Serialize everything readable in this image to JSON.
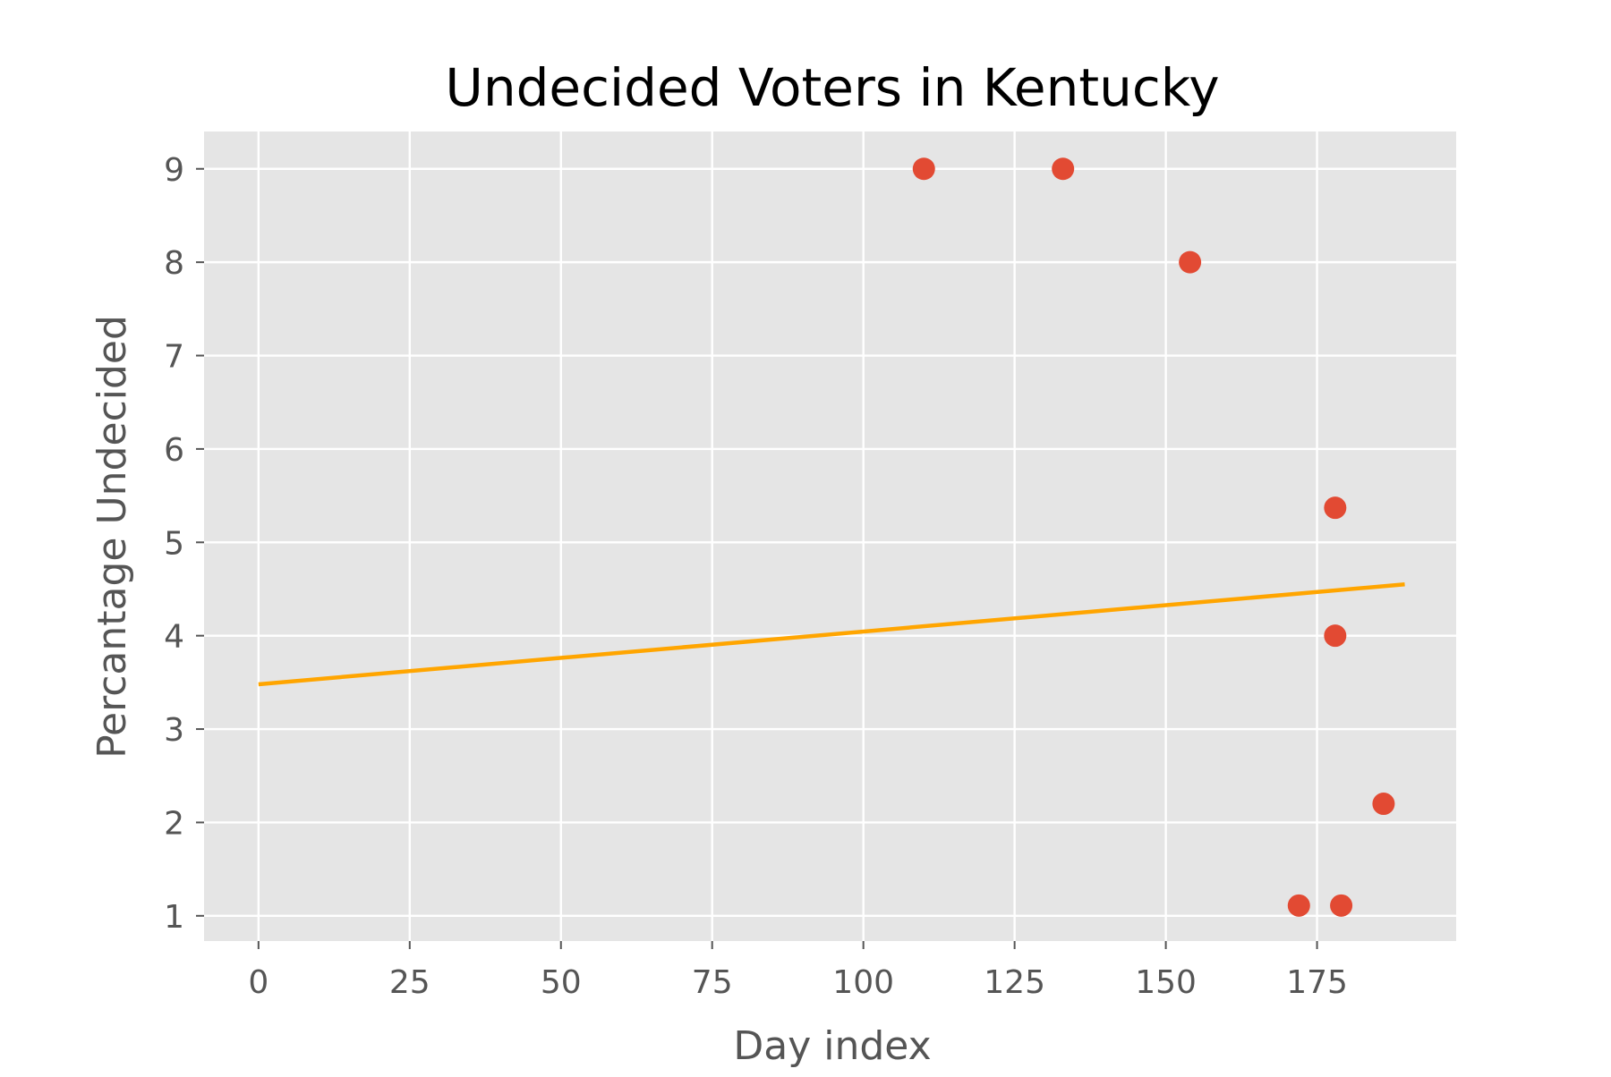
{
  "chart_data": {
    "type": "scatter",
    "title": "Undecided Voters in Kentucky",
    "xlabel": "Day index",
    "ylabel": "Percantage Undecided",
    "xlim": [
      -9,
      198
    ],
    "ylim": [
      0.73,
      9.4
    ],
    "xticks": [
      0,
      25,
      50,
      75,
      100,
      125,
      150,
      175
    ],
    "yticks": [
      1,
      2,
      3,
      4,
      5,
      6,
      7,
      8,
      9
    ],
    "grid": true,
    "legend": "none",
    "series": [
      {
        "type": "scatter",
        "points": [
          {
            "x": 110,
            "y": 9
          },
          {
            "x": 133,
            "y": 9
          },
          {
            "x": 154,
            "y": 8
          },
          {
            "x": 178,
            "y": 5.37
          },
          {
            "x": 178,
            "y": 4
          },
          {
            "x": 186,
            "y": 2.2
          },
          {
            "x": 172,
            "y": 1.11
          },
          {
            "x": 179,
            "y": 1.11
          }
        ]
      },
      {
        "type": "line",
        "points": [
          {
            "x": 0,
            "y": 3.48
          },
          {
            "x": 189.5,
            "y": 4.55
          }
        ]
      }
    ],
    "colors": {
      "background": "#e5e5e5",
      "grid": "#ffffff",
      "scatter": "#e24a33",
      "trend_line": "#ffa500",
      "tick_text": "#555555",
      "title_text": "#000000"
    }
  }
}
